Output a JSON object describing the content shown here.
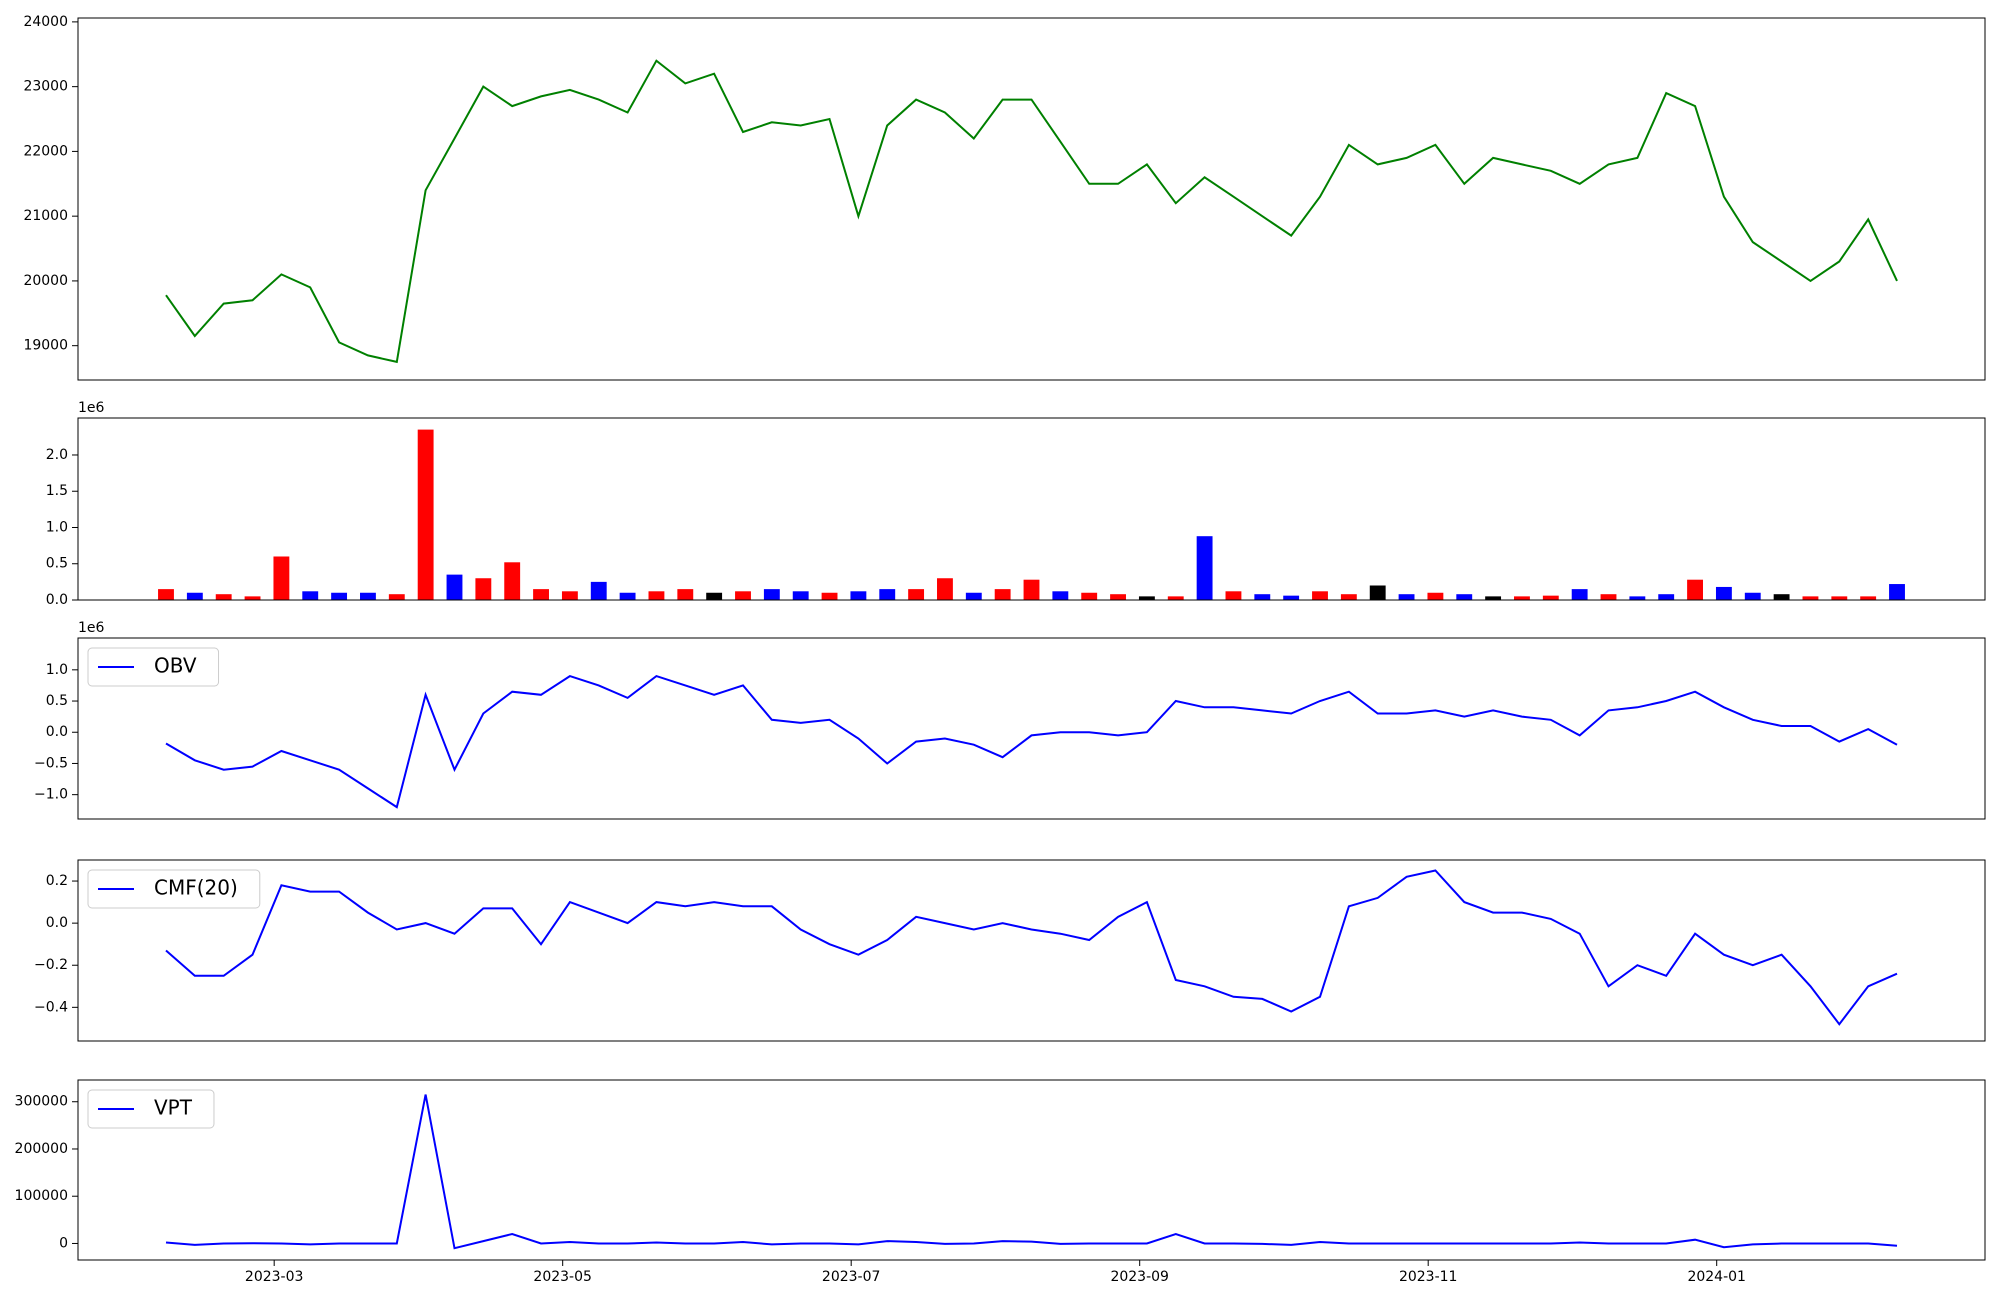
{
  "chart_data": [
    {
      "type": "line",
      "x": [
        1.25,
        1.45,
        1.65,
        1.85,
        2.05,
        2.25,
        2.45,
        2.65,
        2.85,
        3.05,
        3.25,
        3.45,
        3.65,
        3.85,
        4.05,
        4.25,
        4.45,
        4.65,
        4.85,
        5.05,
        5.25,
        5.45,
        5.65,
        5.85,
        6.05,
        6.25,
        6.45,
        6.65,
        6.85,
        7.05,
        7.25,
        7.45,
        7.65,
        7.85,
        8.05,
        8.25,
        8.45,
        8.65,
        8.85,
        9.05,
        9.25,
        9.45,
        9.65,
        9.85,
        10.05,
        10.25,
        10.45,
        10.65,
        10.85,
        11.05,
        11.25,
        11.45,
        11.65,
        11.85,
        12.05,
        12.25,
        12.45,
        12.65,
        12.85,
        13.05,
        13.25
      ],
      "series": [
        {
          "color": "#008000",
          "values": [
            19780,
            19150,
            19650,
            19700,
            20100,
            19900,
            19050,
            18850,
            18750,
            21400,
            22200,
            23000,
            22700,
            22850,
            22950,
            22800,
            22600,
            23400,
            23050,
            23200,
            22300,
            22450,
            22400,
            22500,
            21000,
            22400,
            22800,
            22600,
            22200,
            22800,
            22800,
            22150,
            21500,
            21500,
            21800,
            21200,
            21600,
            21300,
            21000,
            20700,
            21300,
            22100,
            21800,
            21900,
            22100,
            21500,
            21900,
            21800,
            21700,
            21500,
            21800,
            21900,
            22900,
            22700,
            21300,
            20600,
            20300,
            20000,
            20300,
            20950,
            20000
          ]
        }
      ],
      "xlim": [
        0.64,
        13.86
      ],
      "ylim": [
        18470,
        24060
      ],
      "yticks": [
        19000,
        20000,
        21000,
        22000,
        23000,
        24000
      ]
    },
    {
      "type": "bar",
      "y_offset_label": "1e6",
      "x": [
        1.25,
        1.45,
        1.65,
        1.85,
        2.05,
        2.25,
        2.45,
        2.65,
        2.85,
        3.05,
        3.25,
        3.45,
        3.65,
        3.85,
        4.05,
        4.25,
        4.45,
        4.65,
        4.85,
        5.05,
        5.25,
        5.45,
        5.65,
        5.85,
        6.05,
        6.25,
        6.45,
        6.65,
        6.85,
        7.05,
        7.25,
        7.45,
        7.65,
        7.85,
        8.05,
        8.25,
        8.45,
        8.65,
        8.85,
        9.05,
        9.25,
        9.45,
        9.65,
        9.85,
        10.05,
        10.25,
        10.45,
        10.65,
        10.85,
        11.05,
        11.25,
        11.45,
        11.65,
        11.85,
        12.05,
        12.25,
        12.45,
        12.65,
        12.85,
        13.05,
        13.25
      ],
      "values": [
        0.15,
        0.1,
        0.08,
        0.05,
        0.6,
        0.12,
        0.1,
        0.1,
        0.08,
        2.35,
        0.35,
        0.3,
        0.52,
        0.15,
        0.12,
        0.25,
        0.1,
        0.12,
        0.15,
        0.1,
        0.12,
        0.15,
        0.12,
        0.1,
        0.12,
        0.15,
        0.15,
        0.3,
        0.1,
        0.15,
        0.28,
        0.12,
        0.1,
        0.08,
        0.05,
        0.05,
        0.88,
        0.12,
        0.08,
        0.06,
        0.12,
        0.08,
        0.2,
        0.08,
        0.1,
        0.08,
        0.05,
        0.05,
        0.06,
        0.15,
        0.08,
        0.05,
        0.08,
        0.28,
        0.18,
        0.1,
        0.08,
        0.05,
        0.05,
        0.05,
        0.22
      ],
      "colors": [
        "red",
        "blue",
        "red",
        "red",
        "red",
        "blue",
        "blue",
        "blue",
        "red",
        "red",
        "blue",
        "red",
        "red",
        "red",
        "red",
        "blue",
        "blue",
        "red",
        "red",
        "black",
        "red",
        "blue",
        "blue",
        "red",
        "blue",
        "blue",
        "red",
        "red",
        "blue",
        "red",
        "red",
        "blue",
        "red",
        "red",
        "black",
        "red",
        "blue",
        "red",
        "blue",
        "blue",
        "red",
        "red",
        "black",
        "blue",
        "red",
        "blue",
        "black",
        "red",
        "red",
        "blue",
        "red",
        "blue",
        "blue",
        "red",
        "blue",
        "blue",
        "black",
        "red",
        "red",
        "red",
        "blue"
      ],
      "xlim": [
        0.64,
        13.86
      ],
      "ylim": [
        0,
        2.51
      ],
      "yticks": [
        {
          "value": 0,
          "label": "0.0"
        },
        0.5,
        {
          "value": 1,
          "label": "1.0"
        },
        1.5,
        {
          "value": 2,
          "label": "2.0"
        }
      ]
    },
    {
      "type": "line",
      "y_offset_label": "1e6",
      "x": [
        1.25,
        1.45,
        1.65,
        1.85,
        2.05,
        2.25,
        2.45,
        2.65,
        2.85,
        3.05,
        3.25,
        3.45,
        3.65,
        3.85,
        4.05,
        4.25,
        4.45,
        4.65,
        4.85,
        5.05,
        5.25,
        5.45,
        5.65,
        5.85,
        6.05,
        6.25,
        6.45,
        6.65,
        6.85,
        7.05,
        7.25,
        7.45,
        7.65,
        7.85,
        8.05,
        8.25,
        8.45,
        8.65,
        8.85,
        9.05,
        9.25,
        9.45,
        9.65,
        9.85,
        10.05,
        10.25,
        10.45,
        10.65,
        10.85,
        11.05,
        11.25,
        11.45,
        11.65,
        11.85,
        12.05,
        12.25,
        12.45,
        12.65,
        12.85,
        13.05,
        13.25
      ],
      "series": [
        {
          "name": "OBV",
          "color": "#0000ff",
          "values": [
            -0.18,
            -0.45,
            -0.6,
            -0.55,
            -0.3,
            -0.45,
            -0.6,
            -0.9,
            -1.2,
            0.6,
            -0.6,
            0.3,
            0.65,
            0.6,
            0.9,
            0.75,
            0.55,
            0.9,
            0.75,
            0.6,
            0.75,
            0.2,
            0.15,
            0.2,
            -0.1,
            -0.5,
            -0.15,
            -0.1,
            -0.2,
            -0.4,
            -0.05,
            0.0,
            0.0,
            -0.05,
            0.0,
            0.5,
            0.4,
            0.4,
            0.35,
            0.3,
            0.5,
            0.65,
            0.3,
            0.3,
            0.35,
            0.25,
            0.35,
            0.25,
            0.2,
            -0.05,
            0.35,
            0.4,
            0.5,
            0.65,
            0.4,
            0.2,
            0.1,
            0.1,
            -0.15,
            0.05,
            -0.2
          ]
        }
      ],
      "xlim": [
        0.64,
        13.86
      ],
      "ylim": [
        -1.39,
        1.51
      ],
      "yticks": [
        {
          "value": -1,
          "label": "−1.0"
        },
        {
          "value": -0.5,
          "label": "−0.5"
        },
        {
          "value": 0,
          "label": "0.0"
        },
        0.5,
        {
          "value": 1,
          "label": "1.0"
        }
      ]
    },
    {
      "type": "line",
      "x": [
        1.25,
        1.45,
        1.65,
        1.85,
        2.05,
        2.25,
        2.45,
        2.65,
        2.85,
        3.05,
        3.25,
        3.45,
        3.65,
        3.85,
        4.05,
        4.25,
        4.45,
        4.65,
        4.85,
        5.05,
        5.25,
        5.45,
        5.65,
        5.85,
        6.05,
        6.25,
        6.45,
        6.65,
        6.85,
        7.05,
        7.25,
        7.45,
        7.65,
        7.85,
        8.05,
        8.25,
        8.45,
        8.65,
        8.85,
        9.05,
        9.25,
        9.45,
        9.65,
        9.85,
        10.05,
        10.25,
        10.45,
        10.65,
        10.85,
        11.05,
        11.25,
        11.45,
        11.65,
        11.85,
        12.05,
        12.25,
        12.45,
        12.65,
        12.85,
        13.05,
        13.25
      ],
      "series": [
        {
          "name": "CMF(20)",
          "color": "#0000ff",
          "values": [
            -0.13,
            -0.25,
            -0.25,
            -0.15,
            0.18,
            0.15,
            0.15,
            0.05,
            -0.03,
            0.0,
            -0.05,
            0.07,
            0.07,
            -0.1,
            0.1,
            0.05,
            0.0,
            0.1,
            0.08,
            0.1,
            0.08,
            0.08,
            -0.03,
            -0.1,
            -0.15,
            -0.08,
            0.03,
            0.0,
            -0.03,
            0.0,
            -0.03,
            -0.05,
            -0.08,
            0.03,
            0.1,
            -0.27,
            -0.3,
            -0.35,
            -0.36,
            -0.42,
            -0.35,
            0.08,
            0.12,
            0.22,
            0.25,
            0.1,
            0.05,
            0.05,
            0.02,
            -0.05,
            -0.3,
            -0.2,
            -0.25,
            -0.05,
            -0.15,
            -0.2,
            -0.15,
            -0.3,
            -0.48,
            -0.3,
            -0.24
          ]
        }
      ],
      "xlim": [
        0.64,
        13.86
      ],
      "ylim": [
        -0.56,
        0.3
      ],
      "yticks": [
        {
          "value": -0.4,
          "label": "−0.4"
        },
        {
          "value": -0.2,
          "label": "−0.2"
        },
        {
          "value": 0,
          "label": "0.0"
        },
        0.2
      ]
    },
    {
      "type": "line",
      "x": [
        1.25,
        1.45,
        1.65,
        1.85,
        2.05,
        2.25,
        2.45,
        2.65,
        2.85,
        3.05,
        3.25,
        3.45,
        3.65,
        3.85,
        4.05,
        4.25,
        4.45,
        4.65,
        4.85,
        5.05,
        5.25,
        5.45,
        5.65,
        5.85,
        6.05,
        6.25,
        6.45,
        6.65,
        6.85,
        7.05,
        7.25,
        7.45,
        7.65,
        7.85,
        8.05,
        8.25,
        8.45,
        8.65,
        8.85,
        9.05,
        9.25,
        9.45,
        9.65,
        9.85,
        10.05,
        10.25,
        10.45,
        10.65,
        10.85,
        11.05,
        11.25,
        11.45,
        11.65,
        11.85,
        12.05,
        12.25,
        12.45,
        12.65,
        12.85,
        13.05,
        13.25
      ],
      "series": [
        {
          "name": "VPT",
          "color": "#0000ff",
          "values": [
            2000,
            -3000,
            0,
            500,
            0,
            -2000,
            0,
            0,
            0,
            315000,
            -10000,
            5000,
            20000,
            0,
            3000,
            0,
            0,
            2000,
            0,
            0,
            3000,
            -2000,
            0,
            0,
            -2000,
            5000,
            3000,
            -1000,
            0,
            5000,
            4000,
            -1000,
            0,
            0,
            0,
            20000,
            0,
            0,
            -1000,
            -3000,
            3000,
            0,
            0,
            0,
            0,
            0,
            0,
            0,
            0,
            2000,
            0,
            0,
            0,
            8000,
            -8000,
            -2000,
            0,
            0,
            0,
            0,
            -5000
          ]
        }
      ],
      "xlim": [
        0.64,
        13.86
      ],
      "ylim": [
        -35000,
        346000
      ],
      "yticks": [
        0,
        100000,
        200000,
        300000
      ],
      "xticks": [
        {
          "value": 2,
          "label": "2023-03"
        },
        {
          "value": 4,
          "label": "2023-05"
        },
        {
          "value": 6,
          "label": "2023-07"
        },
        {
          "value": 8,
          "label": "2023-09"
        },
        {
          "value": 10,
          "label": "2023-11"
        },
        {
          "value": 12,
          "label": "2024-01"
        }
      ]
    }
  ]
}
